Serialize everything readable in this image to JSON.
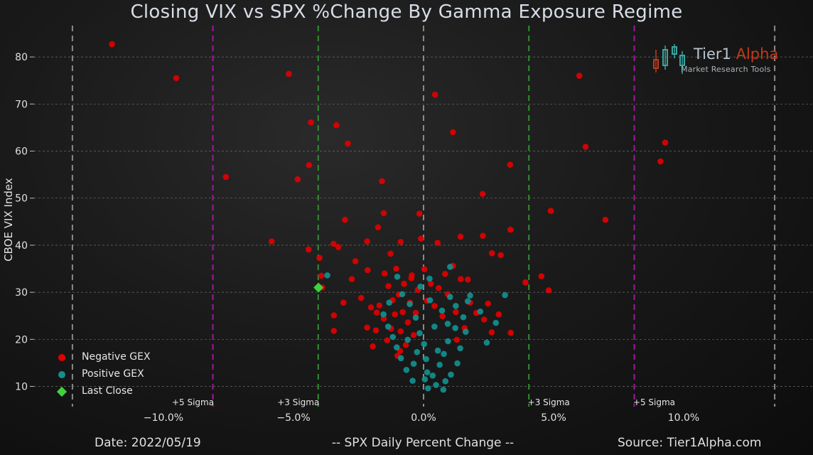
{
  "chart_data": {
    "type": "scatter",
    "title": "Closing VIX vs SPX %Change By Gamma Exposure Regime",
    "xlabel": "-- SPX Daily Percent Change --",
    "ylabel": "CBOE VIX Index",
    "xlim": [
      -13.5,
      13.5
    ],
    "ylim": [
      7,
      86
    ],
    "x_ticks": [
      {
        "value": -10,
        "label": "−10.0%"
      },
      {
        "value": -5,
        "label": "−5.0%"
      },
      {
        "value": 0,
        "label": "0.0%"
      },
      {
        "value": 5,
        "label": "5.0%"
      },
      {
        "value": 10,
        "label": "10.0%"
      }
    ],
    "y_ticks": [
      10,
      20,
      30,
      40,
      50,
      60,
      70,
      80
    ],
    "grid": "horizontal dashed",
    "sigma_lines": [
      {
        "value": -13.5,
        "color": "#8a8a8a",
        "label": ""
      },
      {
        "value": -8.1,
        "color": "#a0189e",
        "label": "+5 Sigma"
      },
      {
        "value": -4.05,
        "color": "#2f8f2f",
        "label": "+3 Sigma"
      },
      {
        "value": 0,
        "color": "#8a8a8a",
        "label": ""
      },
      {
        "value": 4.05,
        "color": "#2f8f2f",
        "label": "+3 Sigma"
      },
      {
        "value": 8.1,
        "color": "#a0189e",
        "label": "+5 Sigma"
      },
      {
        "value": 13.5,
        "color": "#8a8a8a",
        "label": ""
      }
    ],
    "series": [
      {
        "name": "Negative GEX",
        "color": "#e00000",
        "points": [
          [
            -11.98,
            82.7
          ],
          [
            -9.51,
            75.5
          ],
          [
            -5.18,
            76.4
          ],
          [
            0.44,
            72.0
          ],
          [
            5.99,
            76.0
          ],
          [
            -4.33,
            66.1
          ],
          [
            -3.35,
            65.5
          ],
          [
            -2.91,
            61.6
          ],
          [
            1.13,
            64.0
          ],
          [
            6.23,
            60.9
          ],
          [
            9.29,
            61.8
          ],
          [
            9.11,
            57.8
          ],
          [
            -7.6,
            54.5
          ],
          [
            -4.84,
            54.0
          ],
          [
            -4.4,
            57.0
          ],
          [
            -1.6,
            53.6
          ],
          [
            3.33,
            57.1
          ],
          [
            2.27,
            50.9
          ],
          [
            -1.53,
            46.8
          ],
          [
            -0.16,
            46.7
          ],
          [
            4.89,
            47.3
          ],
          [
            6.99,
            45.4
          ],
          [
            -3.02,
            45.4
          ],
          [
            -5.84,
            40.8
          ],
          [
            -4.42,
            39.1
          ],
          [
            -3.46,
            40.3
          ],
          [
            -3.28,
            39.6
          ],
          [
            -4.0,
            37.3
          ],
          [
            -2.17,
            40.8
          ],
          [
            -1.75,
            43.8
          ],
          [
            -1.27,
            38.2
          ],
          [
            -0.88,
            40.7
          ],
          [
            -0.1,
            41.4
          ],
          [
            0.54,
            40.5
          ],
          [
            1.42,
            41.8
          ],
          [
            2.28,
            42.0
          ],
          [
            2.63,
            38.3
          ],
          [
            2.97,
            37.9
          ],
          [
            3.34,
            43.3
          ],
          [
            3.92,
            32.1
          ],
          [
            4.53,
            33.4
          ],
          [
            4.81,
            30.4
          ],
          [
            -3.93,
            33.5
          ],
          [
            -3.9,
            31.0
          ],
          [
            -3.45,
            25.1
          ],
          [
            -3.45,
            21.8
          ],
          [
            -3.08,
            27.8
          ],
          [
            -2.76,
            32.8
          ],
          [
            -2.4,
            28.8
          ],
          [
            -2.17,
            22.5
          ],
          [
            -2.02,
            26.8
          ],
          [
            -1.95,
            18.5
          ],
          [
            -1.83,
            21.9
          ],
          [
            -1.7,
            27.2
          ],
          [
            -1.53,
            24.4
          ],
          [
            -1.5,
            34.0
          ],
          [
            -1.4,
            19.8
          ],
          [
            -1.35,
            31.3
          ],
          [
            -1.25,
            22.3
          ],
          [
            -1.19,
            28.3
          ],
          [
            -1.1,
            25.3
          ],
          [
            -1.05,
            35.0
          ],
          [
            -1.0,
            16.5
          ],
          [
            -0.95,
            29.5
          ],
          [
            -0.88,
            21.7
          ],
          [
            -0.8,
            25.8
          ],
          [
            -0.75,
            31.8
          ],
          [
            -0.68,
            18.8
          ],
          [
            -0.6,
            23.6
          ],
          [
            -0.52,
            27.8
          ],
          [
            -0.47,
            33.0
          ],
          [
            -0.38,
            20.9
          ],
          [
            -0.3,
            25.6
          ],
          [
            -0.22,
            30.5
          ],
          [
            0.03,
            34.9
          ],
          [
            0.13,
            28.2
          ],
          [
            0.28,
            31.8
          ],
          [
            0.42,
            27.1
          ],
          [
            0.58,
            30.9
          ],
          [
            0.73,
            24.9
          ],
          [
            0.93,
            29.6
          ],
          [
            1.13,
            35.6
          ],
          [
            1.24,
            25.8
          ],
          [
            1.43,
            32.8
          ],
          [
            1.58,
            22.4
          ],
          [
            1.79,
            27.8
          ],
          [
            2.03,
            25.6
          ],
          [
            2.33,
            24.2
          ],
          [
            2.48,
            27.6
          ],
          [
            2.62,
            21.5
          ],
          [
            2.89,
            25.3
          ],
          [
            3.35,
            21.4
          ],
          [
            -2.62,
            36.6
          ],
          [
            -2.15,
            34.7
          ],
          [
            -0.45,
            33.6
          ],
          [
            0.83,
            33.9
          ],
          [
            1.7,
            32.7
          ],
          [
            -1.8,
            25.7
          ],
          [
            -0.9,
            17.5
          ],
          [
            1.28,
            19.9
          ]
        ]
      },
      {
        "name": "Positive GEX",
        "color": "#12908e",
        "points": [
          [
            -3.7,
            33.6
          ],
          [
            0.23,
            32.9
          ],
          [
            1.02,
            35.4
          ],
          [
            1.79,
            29.3
          ],
          [
            2.18,
            25.9
          ],
          [
            2.43,
            19.3
          ],
          [
            2.78,
            23.5
          ],
          [
            3.13,
            29.4
          ],
          [
            -1.01,
            33.3
          ],
          [
            -0.82,
            29.6
          ],
          [
            -0.53,
            27.5
          ],
          [
            -0.3,
            24.6
          ],
          [
            -0.15,
            21.3
          ],
          [
            0.02,
            19.0
          ],
          [
            0.1,
            15.8
          ],
          [
            0.14,
            13.0
          ],
          [
            0.05,
            11.5
          ],
          [
            0.48,
            10.3
          ],
          [
            0.35,
            12.3
          ],
          [
            0.62,
            14.6
          ],
          [
            0.78,
            16.9
          ],
          [
            0.94,
            19.6
          ],
          [
            1.22,
            22.4
          ],
          [
            1.41,
            18.1
          ],
          [
            1.53,
            24.7
          ],
          [
            1.7,
            28.1
          ],
          [
            1.3,
            14.9
          ],
          [
            1.05,
            12.5
          ],
          [
            0.84,
            11.1
          ],
          [
            -0.42,
            11.2
          ],
          [
            -0.66,
            13.5
          ],
          [
            -0.87,
            16.0
          ],
          [
            -1.03,
            18.3
          ],
          [
            -1.18,
            20.5
          ],
          [
            -1.36,
            22.7
          ],
          [
            -1.54,
            25.3
          ],
          [
            -1.32,
            27.8
          ],
          [
            -0.61,
            19.9
          ],
          [
            -0.25,
            17.3
          ],
          [
            0.42,
            22.7
          ],
          [
            0.71,
            26.1
          ],
          [
            1.02,
            29.0
          ],
          [
            0.25,
            28.3
          ],
          [
            -0.12,
            31.2
          ],
          [
            -0.38,
            14.8
          ],
          [
            0.17,
            9.6
          ],
          [
            0.76,
            9.3
          ],
          [
            0.93,
            23.3
          ],
          [
            0.55,
            17.6
          ],
          [
            1.62,
            21.6
          ],
          [
            1.24,
            27.1
          ]
        ]
      }
    ],
    "last_close": {
      "name": "Last Close",
      "x": -4.04,
      "y": 31.0,
      "color": "#3dd33d"
    },
    "legend_position": "lower-left"
  },
  "footer": {
    "date": "Date: 2022/05/19",
    "source": "Source: Tier1Alpha.com"
  },
  "logo": {
    "name_part1": "Tier1 ",
    "name_part2": "Alpha",
    "subtitle": "Market  Research Tools"
  }
}
